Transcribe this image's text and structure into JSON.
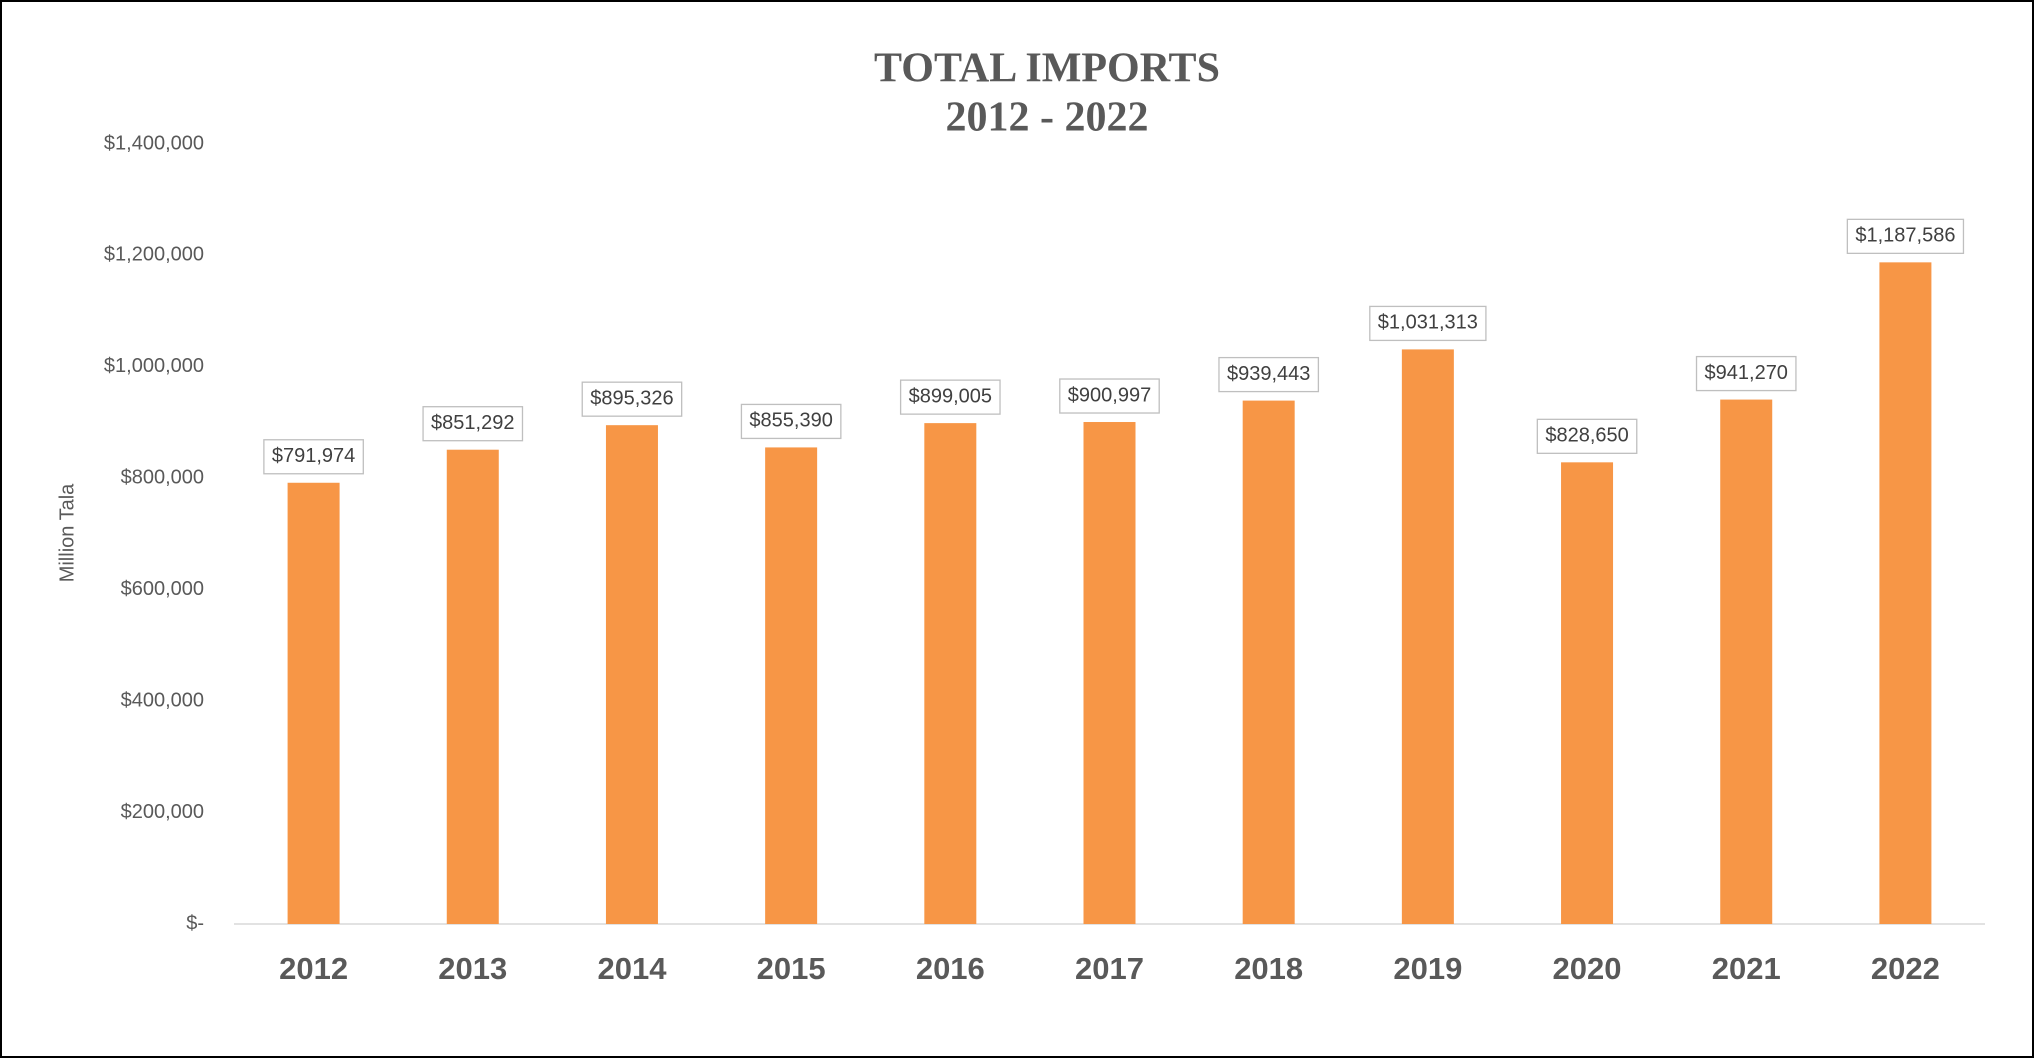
{
  "chart_data": {
    "type": "bar",
    "title": "TOTAL IMPORTS",
    "subtitle": "2012 - 2022",
    "y_label": "Million Tala",
    "categories": [
      "2012",
      "2013",
      "2014",
      "2015",
      "2016",
      "2017",
      "2018",
      "2019",
      "2020",
      "2021",
      "2022"
    ],
    "values": [
      791974,
      851292,
      895326,
      855390,
      899005,
      900997,
      939443,
      1031313,
      828650,
      941270,
      1187586
    ],
    "value_labels": [
      "$791,974",
      "$851,292",
      "$895,326",
      "$855,390",
      "$899,005",
      "$900,997",
      "$939,443",
      "$1,031,313",
      "$828,650",
      "$941,270",
      "$1,187,586"
    ],
    "color": "#f79646",
    "ylim": [
      0,
      1400000
    ],
    "yticks": [
      {
        "value": 0,
        "label": "$-"
      },
      {
        "value": 200000,
        "label": "$200,000"
      },
      {
        "value": 400000,
        "label": "$400,000"
      },
      {
        "value": 600000,
        "label": "$600,000"
      },
      {
        "value": 800000,
        "label": "$800,000"
      },
      {
        "value": 1000000,
        "label": "$1,000,000"
      },
      {
        "value": 1200000,
        "label": "$1,200,000"
      },
      {
        "value": 1400000,
        "label": "$1,400,000"
      }
    ],
    "grid": false
  }
}
